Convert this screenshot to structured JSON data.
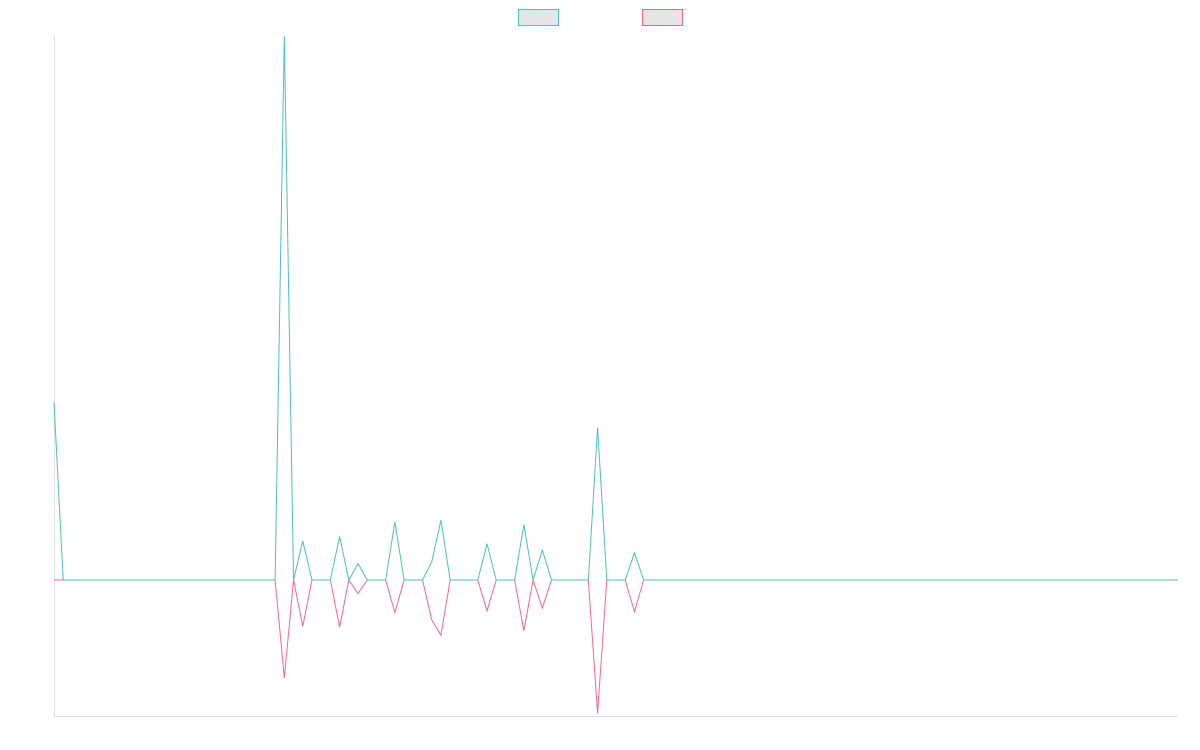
{
  "chart_data": {
    "type": "line",
    "title": "",
    "xlabel": "",
    "ylabel": "",
    "legend_position": "top-center",
    "grid": false,
    "x_count": 123,
    "ylim": [
      -15,
      60
    ],
    "series": [
      {
        "color": "#4bc0c0",
        "fill": "#e5e5e5",
        "points": [
          [
            0,
            19.6
          ],
          [
            1,
            0
          ],
          [
            24,
            0
          ],
          [
            25,
            60
          ],
          [
            26,
            0
          ],
          [
            27,
            4.3
          ],
          [
            28,
            0
          ],
          [
            29,
            0
          ],
          [
            30,
            0
          ],
          [
            31,
            4.8
          ],
          [
            32,
            0
          ],
          [
            33,
            1.8
          ],
          [
            34,
            0
          ],
          [
            35,
            0
          ],
          [
            36,
            0
          ],
          [
            37,
            6.4
          ],
          [
            38,
            0
          ],
          [
            40,
            0
          ],
          [
            41,
            2.0
          ],
          [
            42,
            6.6
          ],
          [
            43,
            0
          ],
          [
            46,
            0
          ],
          [
            47,
            4.0
          ],
          [
            48,
            0
          ],
          [
            50,
            0
          ],
          [
            51,
            6.1
          ],
          [
            52,
            0
          ],
          [
            53,
            3.3
          ],
          [
            54,
            0
          ],
          [
            58,
            0
          ],
          [
            59,
            16.8
          ],
          [
            60,
            0
          ],
          [
            62,
            0
          ],
          [
            63,
            3.0
          ],
          [
            64,
            0
          ],
          [
            122,
            0
          ]
        ]
      },
      {
        "color": "#ff6384",
        "fill": "#e5e5e5",
        "points": [
          [
            0,
            0
          ],
          [
            1,
            0
          ],
          [
            24,
            0
          ],
          [
            25,
            -10.8
          ],
          [
            26,
            0
          ],
          [
            27,
            -5.1
          ],
          [
            28,
            0
          ],
          [
            29,
            0
          ],
          [
            30,
            0
          ],
          [
            31,
            -5.2
          ],
          [
            32,
            0
          ],
          [
            33,
            -1.5
          ],
          [
            34,
            0
          ],
          [
            35,
            0
          ],
          [
            36,
            0
          ],
          [
            37,
            -3.6
          ],
          [
            38,
            0
          ],
          [
            40,
            0
          ],
          [
            41,
            -4.4
          ],
          [
            42,
            -6.1
          ],
          [
            43,
            0
          ],
          [
            46,
            0
          ],
          [
            47,
            -3.4
          ],
          [
            48,
            0
          ],
          [
            50,
            0
          ],
          [
            51,
            -5.6
          ],
          [
            52,
            0
          ],
          [
            53,
            -3.1
          ],
          [
            54,
            0
          ],
          [
            58,
            0
          ],
          [
            59,
            -14.7
          ],
          [
            60,
            0
          ],
          [
            62,
            0
          ],
          [
            63,
            -3.5
          ],
          [
            64,
            0
          ],
          [
            122,
            0
          ]
        ]
      }
    ]
  }
}
